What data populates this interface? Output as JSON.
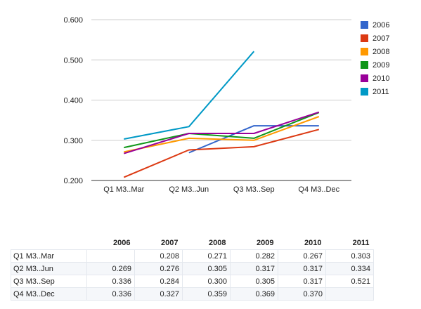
{
  "chart_data": {
    "type": "line",
    "categories": [
      "Q1 M3..Mar",
      "Q2 M3..Jun",
      "Q3 M3..Sep",
      "Q4 M3..Dec"
    ],
    "ylim": [
      0.2,
      0.6
    ],
    "yticks": [
      "0.200",
      "0.300",
      "0.400",
      "0.500",
      "0.600"
    ],
    "grid": true,
    "legend_position": "right",
    "series": [
      {
        "name": "2006",
        "color": "#3366cc",
        "values": [
          null,
          0.269,
          0.336,
          0.336
        ]
      },
      {
        "name": "2007",
        "color": "#dc3912",
        "values": [
          0.208,
          0.276,
          0.284,
          0.327
        ]
      },
      {
        "name": "2008",
        "color": "#ff9900",
        "values": [
          0.271,
          0.305,
          0.3,
          0.359
        ]
      },
      {
        "name": "2009",
        "color": "#109618",
        "values": [
          0.282,
          0.317,
          0.305,
          0.369
        ]
      },
      {
        "name": "2010",
        "color": "#990099",
        "values": [
          0.267,
          0.317,
          0.317,
          0.37
        ]
      },
      {
        "name": "2011",
        "color": "#0099c6",
        "values": [
          0.303,
          0.334,
          0.521,
          null
        ]
      }
    ]
  },
  "table": {
    "columns": [
      "",
      "2006",
      "2007",
      "2008",
      "2009",
      "2010",
      "2011"
    ],
    "rows": [
      {
        "label": "Q1 M3..Mar",
        "cells": [
          "",
          "0.208",
          "0.271",
          "0.282",
          "0.267",
          "0.303"
        ]
      },
      {
        "label": "Q2 M3..Jun",
        "cells": [
          "0.269",
          "0.276",
          "0.305",
          "0.317",
          "0.317",
          "0.334"
        ]
      },
      {
        "label": "Q3 M3..Sep",
        "cells": [
          "0.336",
          "0.284",
          "0.300",
          "0.305",
          "0.317",
          "0.521"
        ]
      },
      {
        "label": "Q4 M3..Dec",
        "cells": [
          "0.336",
          "0.327",
          "0.359",
          "0.369",
          "0.370",
          ""
        ]
      }
    ]
  }
}
